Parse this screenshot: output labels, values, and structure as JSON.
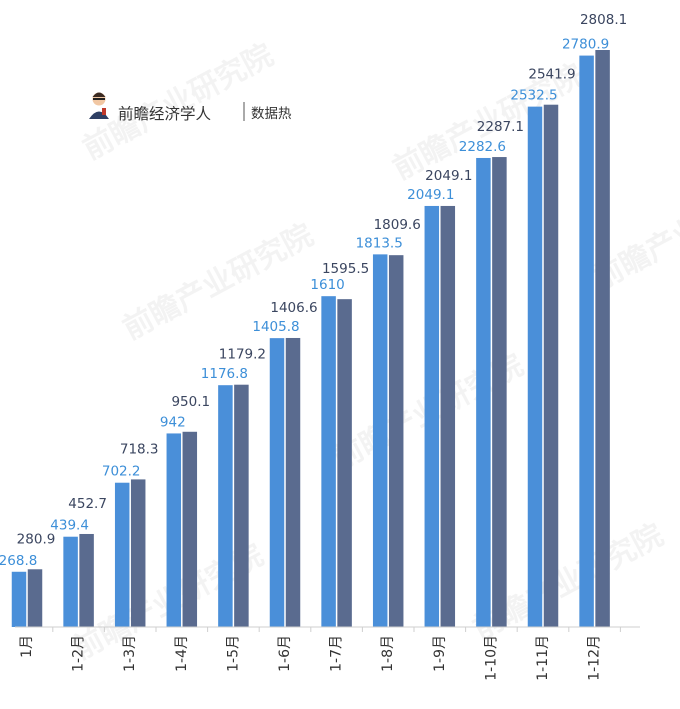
{
  "brand": {
    "name": "前瞻经济学人",
    "sub": "数据热"
  },
  "watermark": "前瞻产业研究院",
  "colors": {
    "series_a": "#4a8fd9",
    "series_b": "#5a6b8f",
    "label_a": "#3d8fd8",
    "label_b": "#3b4660"
  },
  "chart_data": {
    "type": "bar",
    "categories": [
      "1月",
      "1-2月",
      "1-3月",
      "1-4月",
      "1-5月",
      "1-6月",
      "1-7月",
      "1-8月",
      "1-9月",
      "1-10月",
      "1-11月",
      "1-12月"
    ],
    "series": [
      {
        "values": [
          268.8,
          439.4,
          702.2,
          942,
          1176.8,
          1405.8,
          1610,
          1813.5,
          2049.1,
          2282.6,
          2532.5,
          2780.9
        ]
      },
      {
        "values": [
          280.9,
          452.7,
          718.3,
          950.1,
          1179.2,
          1406.6,
          1595.5,
          1809.6,
          2049.1,
          2287.1,
          2541.9,
          2808.1
        ]
      }
    ],
    "ylim": [
      0,
      3000
    ],
    "grid": false,
    "legend": "none",
    "xlabel": "",
    "ylabel": ""
  }
}
